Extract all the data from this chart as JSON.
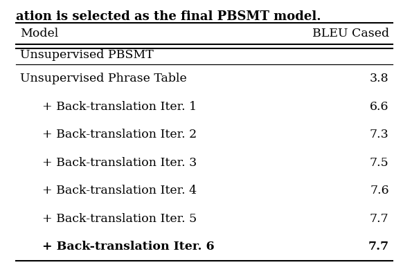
{
  "title_partial": "ation is selected as the final PBSMT model.",
  "col_headers": [
    "Model",
    "BLEU Cased"
  ],
  "section_header": "Unsupervised PBSMT",
  "rows": [
    {
      "model": "Unsupervised Phrase Table",
      "bleu": "3.8",
      "bold": false,
      "indent": false
    },
    {
      "model": "+ Back-translation Iter. 1",
      "bleu": "6.6",
      "bold": false,
      "indent": true
    },
    {
      "model": "+ Back-translation Iter. 2",
      "bleu": "7.3",
      "bold": false,
      "indent": true
    },
    {
      "model": "+ Back-translation Iter. 3",
      "bleu": "7.5",
      "bold": false,
      "indent": true
    },
    {
      "model": "+ Back-translation Iter. 4",
      "bleu": "7.6",
      "bold": false,
      "indent": true
    },
    {
      "model": "+ Back-translation Iter. 5",
      "bleu": "7.7",
      "bold": false,
      "indent": true
    },
    {
      "model": "+ Back-translation Iter. 6",
      "bleu": "7.7",
      "bold": true,
      "indent": true
    }
  ],
  "bg_color": "#ffffff",
  "text_color": "#000000",
  "font_size": 12.5,
  "caption_font_size": 13
}
